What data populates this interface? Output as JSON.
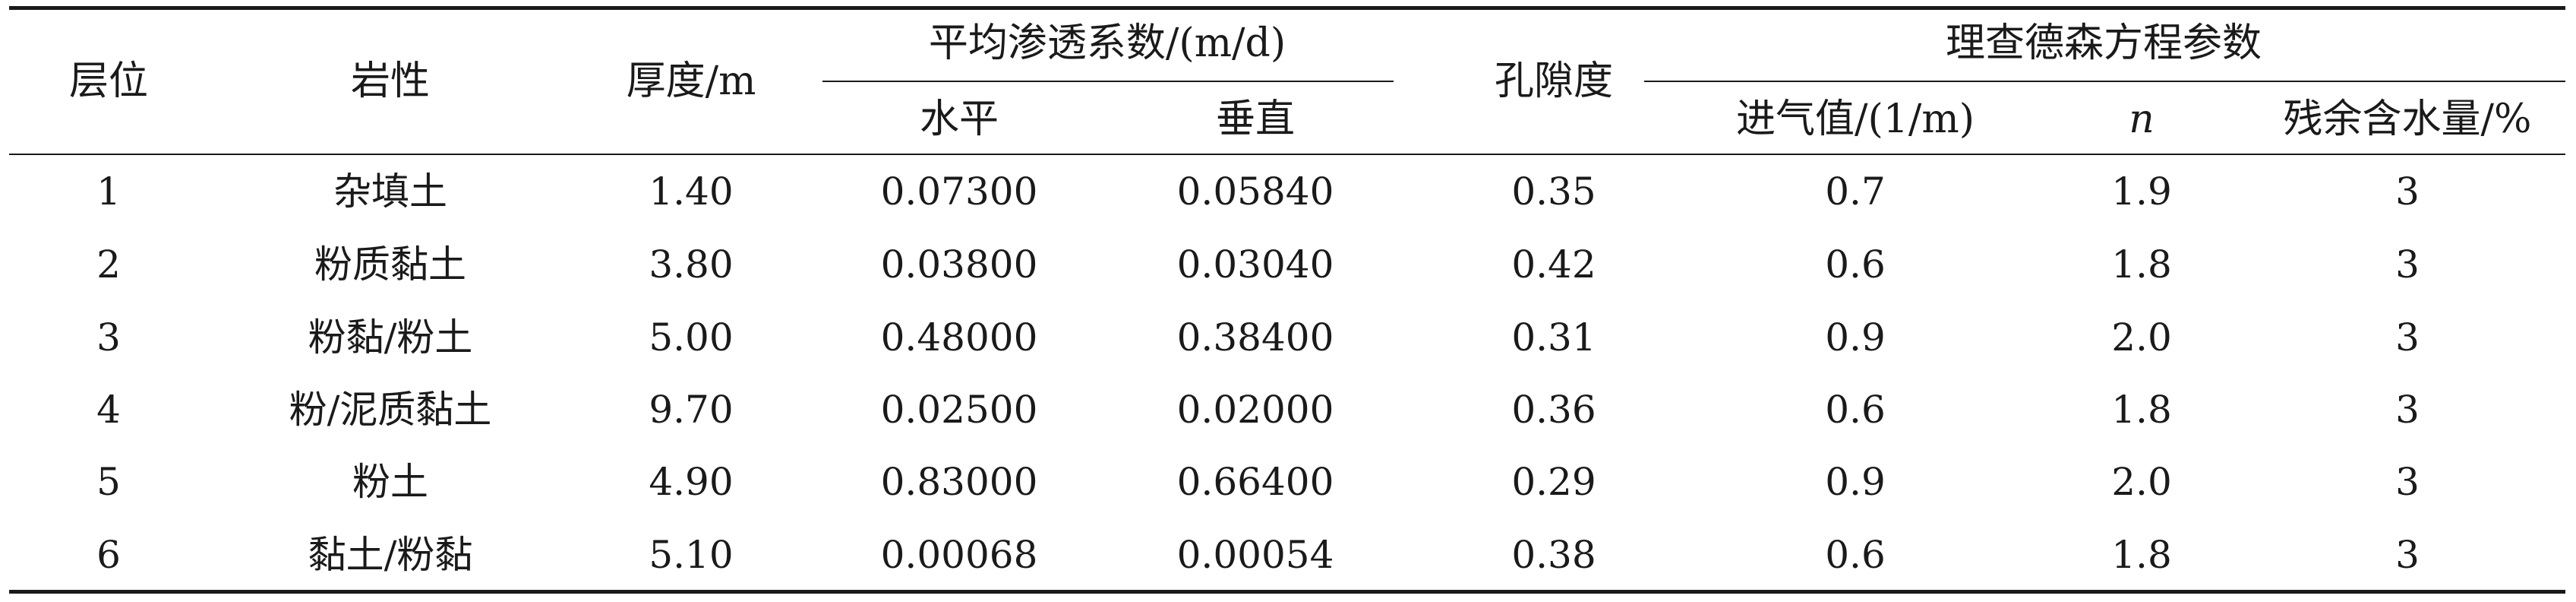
{
  "table": {
    "headers": {
      "layer": "层位",
      "lithology": "岩性",
      "thickness": "厚度/m",
      "permeability_group": "平均渗透系数/(m/d)",
      "horizontal": "水平",
      "vertical": "垂直",
      "porosity": "孔隙度",
      "richards_group": "理查德森方程参数",
      "air_entry": "进气值/(1/m)",
      "n": "n",
      "residual_water": "残余含水量/%"
    },
    "rows": [
      {
        "layer": "1",
        "lithology": "杂填土",
        "thickness": "1.40",
        "horizontal": "0.07300",
        "vertical": "0.05840",
        "porosity": "0.35",
        "air_entry": "0.7",
        "n": "1.9",
        "residual": "3"
      },
      {
        "layer": "2",
        "lithology": "粉质黏土",
        "thickness": "3.80",
        "horizontal": "0.03800",
        "vertical": "0.03040",
        "porosity": "0.42",
        "air_entry": "0.6",
        "n": "1.8",
        "residual": "3"
      },
      {
        "layer": "3",
        "lithology": "粉黏/粉土",
        "thickness": "5.00",
        "horizontal": "0.48000",
        "vertical": "0.38400",
        "porosity": "0.31",
        "air_entry": "0.9",
        "n": "2.0",
        "residual": "3"
      },
      {
        "layer": "4",
        "lithology": "粉/泥质黏土",
        "thickness": "9.70",
        "horizontal": "0.02500",
        "vertical": "0.02000",
        "porosity": "0.36",
        "air_entry": "0.6",
        "n": "1.8",
        "residual": "3"
      },
      {
        "layer": "5",
        "lithology": "粉土",
        "thickness": "4.90",
        "horizontal": "0.83000",
        "vertical": "0.66400",
        "porosity": "0.29",
        "air_entry": "0.9",
        "n": "2.0",
        "residual": "3"
      },
      {
        "layer": "6",
        "lithology": "黏土/粉黏",
        "thickness": "5.10",
        "horizontal": "0.00068",
        "vertical": "0.00054",
        "porosity": "0.38",
        "air_entry": "0.6",
        "n": "1.8",
        "residual": "3"
      }
    ]
  }
}
